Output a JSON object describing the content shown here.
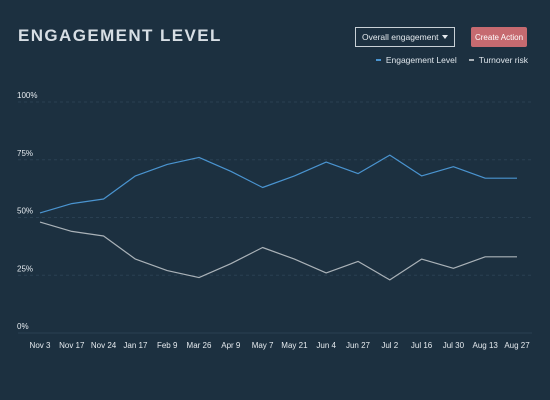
{
  "header": {
    "title": "ENGAGEMENT LEVEL",
    "dropdown_value": "Overall engagement",
    "action_label": "Create Action"
  },
  "colors": {
    "background": "#1c3040",
    "engagement": "#4a94d0",
    "turnover": "#aab2b8",
    "action": "#c66a70"
  },
  "chart_data": {
    "type": "line",
    "title": "ENGAGEMENT LEVEL",
    "xlabel": "",
    "ylabel": "",
    "ylim": [
      0,
      100
    ],
    "yticks": [
      "0%",
      "25%",
      "50%",
      "75%",
      "100%"
    ],
    "yticks_values": [
      0,
      25,
      50,
      75,
      100
    ],
    "categories": [
      "Nov 3",
      "Nov 17",
      "Nov 24",
      "Jan 17",
      "Feb 9",
      "Mar 26",
      "Apr 9",
      "May 7",
      "May 21",
      "Jun 4",
      "Jun 27",
      "Jul 2",
      "Jul 16",
      "Jul 30",
      "Aug 13",
      "Aug 27"
    ],
    "legend_position": "top-right",
    "series": [
      {
        "name": "Engagement Level",
        "color": "#4a94d0",
        "values": [
          52,
          56,
          58,
          68,
          73,
          76,
          70,
          63,
          68,
          74,
          69,
          77,
          68,
          72,
          67,
          67
        ]
      },
      {
        "name": "Turnover risk",
        "color": "#aab2b8",
        "values": [
          48,
          44,
          42,
          32,
          27,
          24,
          30,
          37,
          32,
          26,
          31,
          23,
          32,
          28,
          33,
          33
        ]
      }
    ]
  }
}
